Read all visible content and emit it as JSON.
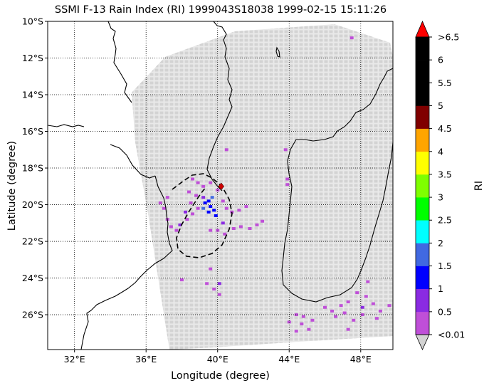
{
  "title": "SSMI F-13 Rain Index (RI) 1999043S18038 1999-02-15 15:11:26",
  "map": {
    "x_label": "Longitude (degree)",
    "y_label": "Latitude (degree)",
    "lon_range": [
      30.5,
      49.8
    ],
    "lat_range": [
      -27.9,
      -10.0
    ],
    "x_ticks": [
      {
        "value": 32,
        "label": "32°E"
      },
      {
        "value": 36,
        "label": "36°E"
      },
      {
        "value": 40,
        "label": "40°E"
      },
      {
        "value": 44,
        "label": "44°E"
      },
      {
        "value": 48,
        "label": "48°E"
      }
    ],
    "y_ticks": [
      {
        "value": -10,
        "label": "10°S"
      },
      {
        "value": -12,
        "label": "12°S"
      },
      {
        "value": -14,
        "label": "14°S"
      },
      {
        "value": -16,
        "label": "16°S"
      },
      {
        "value": -18,
        "label": "18°S"
      },
      {
        "value": -20,
        "label": "20°S"
      },
      {
        "value": -22,
        "label": "22°S"
      },
      {
        "value": -24,
        "label": "24°S"
      },
      {
        "value": -26,
        "label": "26°S"
      }
    ],
    "grid": "dotted",
    "storm_center": {
      "lon": 40.2,
      "lat": -19.0,
      "color": "#cc0000"
    }
  },
  "colorbar": {
    "label": "RI",
    "ticks": [
      "<0.01",
      "0.5",
      "1",
      "1.5",
      "2",
      "2.5",
      "3",
      "3.5",
      "4",
      "4.5",
      "5",
      "5.5",
      "6",
      ">6.5"
    ],
    "colors": [
      "#bf4fd8",
      "#8a2be2",
      "#0000ff",
      "#4169e1",
      "#00ffff",
      "#00ff00",
      "#7fff00",
      "#ffff00",
      "#ffa500",
      "#800000",
      "#000000",
      "#000000",
      "#000000"
    ],
    "under_color": "#d3d3d3",
    "over_color": "#ff0000"
  },
  "chart_data": {
    "type": "scatter",
    "title": "SSMI F-13 Rain Index (RI) 1999043S18038 1999-02-15 15:11:26",
    "xlabel": "Longitude (degree)",
    "ylabel": "Latitude (degree)",
    "xlim": [
      30.5,
      49.8
    ],
    "ylim": [
      -27.9,
      -10.0
    ],
    "background_color": "#d3d3d3",
    "series": [
      {
        "name": "0.01–0.5",
        "color": "#bf4fd8",
        "points": [
          [
            38.6,
            -18.6
          ],
          [
            38.9,
            -18.8
          ],
          [
            39.2,
            -19.0
          ],
          [
            38.4,
            -19.3
          ],
          [
            38.8,
            -19.5
          ],
          [
            38.5,
            -19.9
          ],
          [
            38.9,
            -20.2
          ],
          [
            38.6,
            -20.5
          ],
          [
            38.3,
            -20.8
          ],
          [
            37.2,
            -19.6
          ],
          [
            37.0,
            -20.2
          ],
          [
            37.2,
            -20.8
          ],
          [
            37.4,
            -21.2
          ],
          [
            37.7,
            -21.4
          ],
          [
            36.8,
            -19.9
          ],
          [
            39.6,
            -18.8
          ],
          [
            40.0,
            -19.2
          ],
          [
            40.3,
            -19.8
          ],
          [
            40.5,
            -20.2
          ],
          [
            40.8,
            -20.4
          ],
          [
            41.2,
            -20.3
          ],
          [
            41.6,
            -20.1
          ],
          [
            40.0,
            -21.4
          ],
          [
            40.4,
            -21.6
          ],
          [
            40.9,
            -21.3
          ],
          [
            41.3,
            -21.2
          ],
          [
            41.8,
            -21.3
          ],
          [
            42.2,
            -21.1
          ],
          [
            42.5,
            -20.9
          ],
          [
            39.6,
            -21.4
          ],
          [
            40.5,
            -17.0
          ],
          [
            43.8,
            -17.0
          ],
          [
            43.9,
            -18.6
          ],
          [
            43.9,
            -18.9
          ],
          [
            39.4,
            -24.3
          ],
          [
            39.8,
            -24.6
          ],
          [
            40.1,
            -24.9
          ],
          [
            38.0,
            -24.1
          ],
          [
            39.6,
            -23.5
          ],
          [
            44.4,
            -26.0
          ],
          [
            44.8,
            -26.1
          ],
          [
            45.3,
            -26.3
          ],
          [
            44.0,
            -26.4
          ],
          [
            44.7,
            -26.5
          ],
          [
            46.0,
            -25.6
          ],
          [
            46.4,
            -25.8
          ],
          [
            46.9,
            -25.5
          ],
          [
            47.3,
            -25.3
          ],
          [
            47.8,
            -24.8
          ],
          [
            48.3,
            -25.0
          ],
          [
            48.7,
            -25.4
          ],
          [
            49.1,
            -25.8
          ],
          [
            49.6,
            -25.5
          ],
          [
            48.4,
            -24.2
          ],
          [
            47.6,
            -26.3
          ],
          [
            48.1,
            -26.0
          ],
          [
            48.9,
            -26.2
          ],
          [
            47.1,
            -25.9
          ],
          [
            46.6,
            -26.1
          ],
          [
            47.3,
            -26.8
          ],
          [
            45.1,
            -26.8
          ],
          [
            44.4,
            -26.9
          ],
          [
            47.5,
            -10.9
          ]
        ]
      },
      {
        "name": "0.5–1",
        "color": "#8a2be2",
        "points": [
          [
            39.2,
            -19.6
          ],
          [
            38.2,
            -20.4
          ],
          [
            40.3,
            -21.0
          ],
          [
            37.9,
            -21.1
          ],
          [
            40.1,
            -24.3
          ],
          [
            48.1,
            -25.6
          ]
        ]
      },
      {
        "name": "1–1.5",
        "color": "#0000ff",
        "points": [
          [
            39.3,
            -19.9
          ],
          [
            39.5,
            -19.8
          ],
          [
            39.6,
            -20.1
          ],
          [
            39.8,
            -20.3
          ],
          [
            39.5,
            -20.4
          ],
          [
            39.9,
            -20.6
          ]
        ]
      },
      {
        "name": "1.5–2",
        "color": "#4169e1",
        "points": [
          [
            39.2,
            -20.2
          ],
          [
            39.7,
            -19.6
          ]
        ]
      }
    ]
  }
}
